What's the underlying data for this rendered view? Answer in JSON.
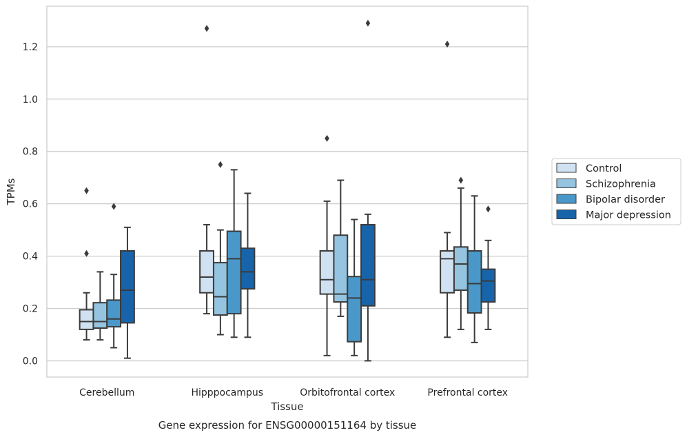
{
  "chart_data": {
    "type": "box",
    "xlabel": "Tissue",
    "ylabel": "TPMs",
    "caption": "Gene expression for ENSG00000151164 by tissue",
    "ylim": [
      -0.062,
      1.355
    ],
    "yticks": [
      "0.0",
      "0.2",
      "0.4",
      "0.6",
      "0.8",
      "1.0",
      "1.2"
    ],
    "grid": "horizontal",
    "legend_position": "right",
    "categories": [
      "Cerebellum",
      "Hipppocampus",
      "Orbitofrontal cortex",
      "Prefrontal cortex"
    ],
    "series": [
      {
        "name": "Control",
        "color": "#d0e1f2",
        "boxes": [
          {
            "whislo": 0.08,
            "q1": 0.12,
            "med": 0.15,
            "q3": 0.195,
            "whishi": 0.26,
            "fliers": [
              0.41,
              0.65
            ]
          },
          {
            "whislo": 0.18,
            "q1": 0.26,
            "med": 0.32,
            "q3": 0.42,
            "whishi": 0.52,
            "fliers": [
              1.27
            ]
          },
          {
            "whislo": 0.02,
            "q1": 0.255,
            "med": 0.31,
            "q3": 0.42,
            "whishi": 0.61,
            "fliers": [
              0.85
            ]
          },
          {
            "whislo": 0.09,
            "q1": 0.26,
            "med": 0.39,
            "q3": 0.42,
            "whishi": 0.49,
            "fliers": [
              1.21
            ]
          }
        ]
      },
      {
        "name": "Schizophrenia",
        "color": "#94c4df",
        "boxes": [
          {
            "whislo": 0.08,
            "q1": 0.125,
            "med": 0.15,
            "q3": 0.222,
            "whishi": 0.34,
            "fliers": []
          },
          {
            "whislo": 0.1,
            "q1": 0.175,
            "med": 0.245,
            "q3": 0.375,
            "whishi": 0.5,
            "fliers": [
              0.75
            ]
          },
          {
            "whislo": 0.17,
            "q1": 0.225,
            "med": 0.255,
            "q3": 0.48,
            "whishi": 0.69,
            "fliers": []
          },
          {
            "whislo": 0.12,
            "q1": 0.27,
            "med": 0.37,
            "q3": 0.435,
            "whishi": 0.66,
            "fliers": [
              0.69
            ]
          }
        ]
      },
      {
        "name": "Bipolar disorder",
        "color": "#4a98c9",
        "boxes": [
          {
            "whislo": 0.05,
            "q1": 0.13,
            "med": 0.16,
            "q3": 0.232,
            "whishi": 0.33,
            "fliers": [
              0.59
            ]
          },
          {
            "whislo": 0.09,
            "q1": 0.18,
            "med": 0.39,
            "q3": 0.495,
            "whishi": 0.73,
            "fliers": []
          },
          {
            "whislo": 0.02,
            "q1": 0.073,
            "med": 0.24,
            "q3": 0.322,
            "whishi": 0.54,
            "fliers": []
          },
          {
            "whislo": 0.07,
            "q1": 0.183,
            "med": 0.295,
            "q3": 0.42,
            "whishi": 0.63,
            "fliers": []
          }
        ]
      },
      {
        "name": "Major depression",
        "color": "#1764ab",
        "boxes": [
          {
            "whislo": 0.01,
            "q1": 0.145,
            "med": 0.27,
            "q3": 0.42,
            "whishi": 0.51,
            "fliers": []
          },
          {
            "whislo": 0.09,
            "q1": 0.275,
            "med": 0.34,
            "q3": 0.43,
            "whishi": 0.64,
            "fliers": []
          },
          {
            "whislo": 0.0,
            "q1": 0.21,
            "med": 0.31,
            "q3": 0.52,
            "whishi": 0.56,
            "fliers": [
              1.29
            ]
          },
          {
            "whislo": 0.12,
            "q1": 0.225,
            "med": 0.305,
            "q3": 0.35,
            "whishi": 0.46,
            "fliers": [
              0.58
            ]
          }
        ]
      }
    ]
  }
}
